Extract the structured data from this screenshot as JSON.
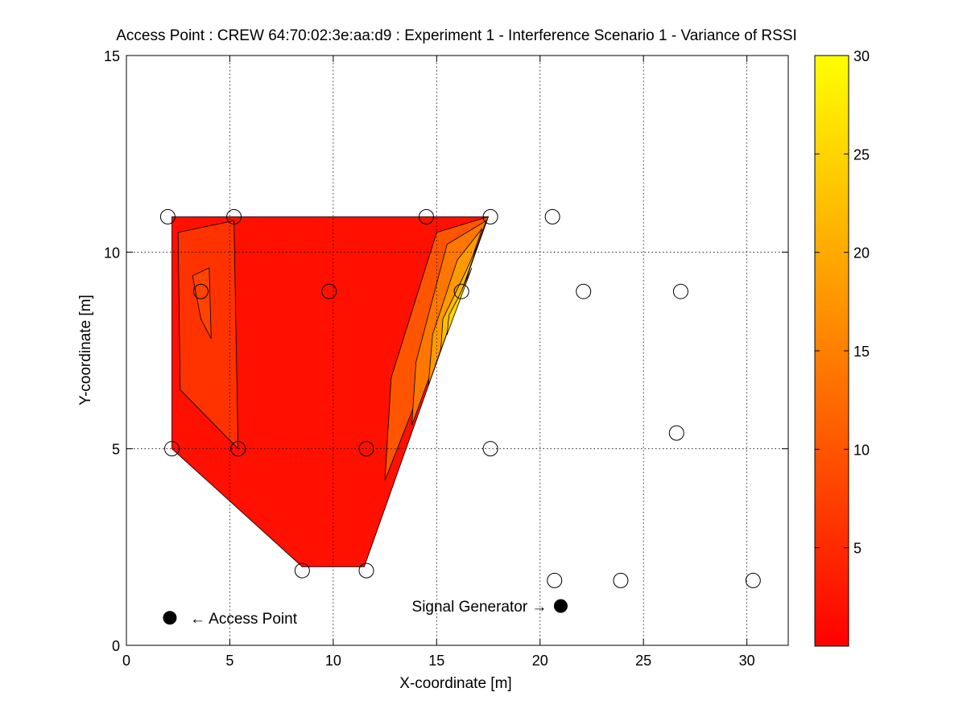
{
  "chart_data": {
    "type": "contour",
    "title": "Access Point : CREW 64:70:02:3e:aa:d9 : Experiment 1 - Interference Scenario 1 - Variance of RSSI",
    "xlabel": "X-coordinate [m]",
    "ylabel": "Y-coordinate [m]",
    "xlim": [
      0,
      32
    ],
    "ylim": [
      0,
      15
    ],
    "xticks": [
      0,
      5,
      10,
      15,
      20,
      25,
      30
    ],
    "yticks": [
      0,
      5,
      10,
      15
    ],
    "grid": true,
    "colorbar": {
      "clim": [
        0,
        30
      ],
      "ticks": [
        5,
        10,
        15,
        20,
        25,
        30
      ],
      "colormap": "autumn",
      "low_color": "#ff0000",
      "high_color": "#ffff00"
    },
    "contour_levels": [
      {
        "level": 1,
        "color": "#ff1000",
        "polygon": [
          [
            2.2,
            10.9
          ],
          [
            17.5,
            10.9
          ],
          [
            11.5,
            2
          ],
          [
            8.5,
            2
          ],
          [
            2.2,
            5
          ]
        ]
      },
      {
        "level": 5,
        "color": "#ff3300",
        "polygon": [
          [
            2.5,
            10.5
          ],
          [
            5.2,
            10.8
          ],
          [
            5.4,
            5
          ],
          [
            2.6,
            6.5
          ]
        ]
      },
      {
        "level": 7,
        "color": "#ff4400",
        "polygon": [
          [
            3.2,
            9.4
          ],
          [
            4.0,
            9.6
          ],
          [
            4.1,
            7.8
          ],
          [
            3.6,
            8.3
          ]
        ]
      },
      {
        "level": 10,
        "color": "#ff5500",
        "polygon": [
          [
            15.0,
            10.5
          ],
          [
            17.5,
            10.9
          ],
          [
            12.5,
            4.2
          ],
          [
            12.8,
            6.8
          ]
        ]
      },
      {
        "level": 14,
        "color": "#ff7700",
        "polygon": [
          [
            15.5,
            10.2
          ],
          [
            17.4,
            10.8
          ],
          [
            13.8,
            5.6
          ],
          [
            14.0,
            7.2
          ]
        ]
      },
      {
        "level": 18,
        "color": "#ff9900",
        "polygon": [
          [
            16.0,
            9.8
          ],
          [
            17.2,
            10.6
          ],
          [
            14.6,
            6.6
          ],
          [
            14.8,
            7.9
          ]
        ]
      },
      {
        "level": 22,
        "color": "#ffbb00",
        "polygon": [
          [
            16.4,
            9.5
          ],
          [
            17.0,
            10.2
          ],
          [
            15.2,
            7.5
          ],
          [
            15.3,
            8.3
          ]
        ]
      },
      {
        "level": 25,
        "color": "#ffd400",
        "polygon": [
          [
            16.1,
            8.9
          ],
          [
            16.7,
            9.6
          ],
          [
            15.5,
            7.9
          ],
          [
            15.6,
            8.4
          ]
        ]
      }
    ],
    "measurement_points": [
      [
        2.0,
        10.9
      ],
      [
        5.2,
        10.9
      ],
      [
        14.5,
        10.9
      ],
      [
        17.6,
        10.9
      ],
      [
        20.6,
        10.9
      ],
      [
        3.6,
        9.0
      ],
      [
        9.8,
        9.0
      ],
      [
        16.2,
        9.0
      ],
      [
        22.1,
        9.0
      ],
      [
        26.8,
        9.0
      ],
      [
        2.2,
        5.0
      ],
      [
        5.4,
        5.0
      ],
      [
        11.6,
        5.0
      ],
      [
        17.6,
        5.0
      ],
      [
        26.6,
        5.4
      ],
      [
        8.5,
        1.9
      ],
      [
        11.6,
        1.9
      ],
      [
        20.7,
        1.65
      ],
      [
        23.9,
        1.65
      ],
      [
        30.3,
        1.65
      ]
    ],
    "annotations": [
      {
        "text": "← Access Point",
        "x": 2.1,
        "y": 0.7,
        "marker": "filled-circle",
        "side": "right"
      },
      {
        "text": "Signal Generator →",
        "x": 21.0,
        "y": 1.0,
        "marker": "filled-circle",
        "side": "left"
      }
    ]
  }
}
